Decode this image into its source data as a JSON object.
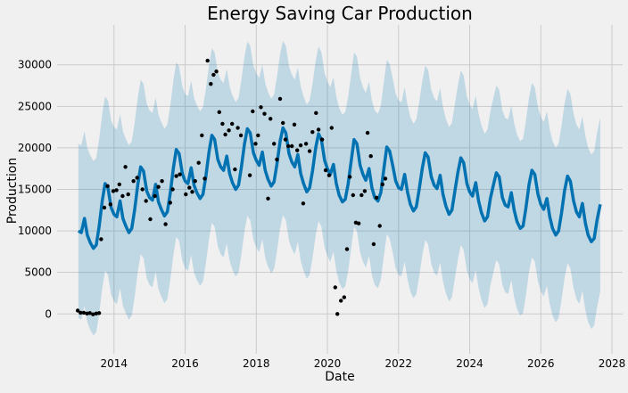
{
  "chart_data": {
    "type": "line",
    "title": "Energy Saving Car Production",
    "xlabel": "Date",
    "ylabel": "Production",
    "xlim": [
      2012.4,
      2028.3
    ],
    "ylim": [
      -4800,
      34800
    ],
    "grid": true,
    "x_ticks": [
      2014,
      2016,
      2018,
      2020,
      2022,
      2024,
      2026,
      2028
    ],
    "x_tick_labels": [
      "2014",
      "2016",
      "2018",
      "2020",
      "2022",
      "2024",
      "2026",
      "2028"
    ],
    "y_ticks": [
      0,
      5000,
      10000,
      15000,
      20000,
      25000,
      30000
    ],
    "y_tick_labels": [
      "0",
      "5000",
      "10000",
      "15000",
      "20000",
      "25000",
      "30000"
    ],
    "colors": {
      "forecast_line": "#0072b2",
      "uncertainty_band": "#0072b2",
      "observed_points": "#000000",
      "background": "#f0f0f0",
      "grid": "#cbcbcb"
    },
    "forecast": [
      [
        2013.0,
        10000
      ],
      [
        2013.08,
        9800
      ],
      [
        2013.17,
        11500
      ],
      [
        2013.25,
        9500
      ],
      [
        2013.33,
        8600
      ],
      [
        2013.42,
        7900
      ],
      [
        2013.5,
        8300
      ],
      [
        2013.58,
        10500
      ],
      [
        2013.67,
        13600
      ],
      [
        2013.75,
        15700
      ],
      [
        2013.83,
        15200
      ],
      [
        2013.92,
        12800
      ],
      [
        2014.0,
        12000
      ],
      [
        2014.08,
        11700
      ],
      [
        2014.17,
        13600
      ],
      [
        2014.25,
        11500
      ],
      [
        2014.33,
        10600
      ],
      [
        2014.42,
        9800
      ],
      [
        2014.5,
        10300
      ],
      [
        2014.58,
        12500
      ],
      [
        2014.67,
        15600
      ],
      [
        2014.75,
        17700
      ],
      [
        2014.83,
        17200
      ],
      [
        2014.92,
        14800
      ],
      [
        2015.0,
        14000
      ],
      [
        2015.08,
        13700
      ],
      [
        2015.17,
        15600
      ],
      [
        2015.25,
        13500
      ],
      [
        2015.33,
        12600
      ],
      [
        2015.42,
        11800
      ],
      [
        2015.5,
        12300
      ],
      [
        2015.58,
        14500
      ],
      [
        2015.67,
        17600
      ],
      [
        2015.75,
        19800
      ],
      [
        2015.83,
        19300
      ],
      [
        2015.92,
        16900
      ],
      [
        2016.0,
        16000
      ],
      [
        2016.08,
        15700
      ],
      [
        2016.17,
        17600
      ],
      [
        2016.25,
        15500
      ],
      [
        2016.33,
        14600
      ],
      [
        2016.42,
        13900
      ],
      [
        2016.5,
        14400
      ],
      [
        2016.58,
        16500
      ],
      [
        2016.67,
        19500
      ],
      [
        2016.75,
        21500
      ],
      [
        2016.83,
        21000
      ],
      [
        2016.92,
        18600
      ],
      [
        2017.0,
        17700
      ],
      [
        2017.08,
        17300
      ],
      [
        2017.17,
        19000
      ],
      [
        2017.25,
        16900
      ],
      [
        2017.33,
        15800
      ],
      [
        2017.42,
        15000
      ],
      [
        2017.5,
        15500
      ],
      [
        2017.58,
        17600
      ],
      [
        2017.67,
        20500
      ],
      [
        2017.75,
        22300
      ],
      [
        2017.83,
        21800
      ],
      [
        2017.92,
        19400
      ],
      [
        2018.0,
        18500
      ],
      [
        2018.08,
        17900
      ],
      [
        2018.17,
        19500
      ],
      [
        2018.25,
        17300
      ],
      [
        2018.33,
        16200
      ],
      [
        2018.42,
        15400
      ],
      [
        2018.5,
        15900
      ],
      [
        2018.58,
        18000
      ],
      [
        2018.67,
        20800
      ],
      [
        2018.75,
        22400
      ],
      [
        2018.83,
        21800
      ],
      [
        2018.92,
        19300
      ],
      [
        2019.0,
        18300
      ],
      [
        2019.08,
        17700
      ],
      [
        2019.17,
        19200
      ],
      [
        2019.25,
        16900
      ],
      [
        2019.33,
        15700
      ],
      [
        2019.42,
        14700
      ],
      [
        2019.5,
        15200
      ],
      [
        2019.58,
        17200
      ],
      [
        2019.67,
        20000
      ],
      [
        2019.75,
        21700
      ],
      [
        2019.83,
        21000
      ],
      [
        2019.92,
        18500
      ],
      [
        2020.0,
        17500
      ],
      [
        2020.08,
        16800
      ],
      [
        2020.17,
        18000
      ],
      [
        2020.25,
        15700
      ],
      [
        2020.33,
        14300
      ],
      [
        2020.42,
        13500
      ],
      [
        2020.5,
        13800
      ],
      [
        2020.58,
        15600
      ],
      [
        2020.67,
        18500
      ],
      [
        2020.75,
        21000
      ],
      [
        2020.83,
        20500
      ],
      [
        2020.92,
        17900
      ],
      [
        2021.0,
        16800
      ],
      [
        2021.08,
        16100
      ],
      [
        2021.17,
        17500
      ],
      [
        2021.25,
        15200
      ],
      [
        2021.33,
        14000
      ],
      [
        2021.42,
        13600
      ],
      [
        2021.5,
        14600
      ],
      [
        2021.58,
        17200
      ],
      [
        2021.67,
        20100
      ],
      [
        2021.75,
        19600
      ],
      [
        2021.83,
        18000
      ],
      [
        2021.92,
        16000
      ],
      [
        2022.0,
        15200
      ],
      [
        2022.08,
        15000
      ],
      [
        2022.17,
        16800
      ],
      [
        2022.25,
        14700
      ],
      [
        2022.33,
        13200
      ],
      [
        2022.42,
        12400
      ],
      [
        2022.5,
        12900
      ],
      [
        2022.58,
        15000
      ],
      [
        2022.67,
        17600
      ],
      [
        2022.75,
        19400
      ],
      [
        2022.83,
        18900
      ],
      [
        2022.92,
        16500
      ],
      [
        2023.0,
        15500
      ],
      [
        2023.08,
        15100
      ],
      [
        2023.17,
        16700
      ],
      [
        2023.25,
        14400
      ],
      [
        2023.33,
        13000
      ],
      [
        2023.42,
        12000
      ],
      [
        2023.5,
        12500
      ],
      [
        2023.58,
        14700
      ],
      [
        2023.67,
        17100
      ],
      [
        2023.75,
        18800
      ],
      [
        2023.83,
        18200
      ],
      [
        2023.92,
        15700
      ],
      [
        2024.0,
        14700
      ],
      [
        2024.08,
        14200
      ],
      [
        2024.17,
        15800
      ],
      [
        2024.25,
        13600
      ],
      [
        2024.33,
        12200
      ],
      [
        2024.42,
        11200
      ],
      [
        2024.5,
        11700
      ],
      [
        2024.58,
        13900
      ],
      [
        2024.67,
        15600
      ],
      [
        2024.75,
        17000
      ],
      [
        2024.83,
        16500
      ],
      [
        2024.92,
        14000
      ],
      [
        2025.0,
        13100
      ],
      [
        2025.08,
        12900
      ],
      [
        2025.17,
        14600
      ],
      [
        2025.25,
        12500
      ],
      [
        2025.33,
        11100
      ],
      [
        2025.42,
        10300
      ],
      [
        2025.5,
        10600
      ],
      [
        2025.58,
        12700
      ],
      [
        2025.67,
        15600
      ],
      [
        2025.75,
        17300
      ],
      [
        2025.83,
        16800
      ],
      [
        2025.92,
        14400
      ],
      [
        2026.0,
        13200
      ],
      [
        2026.08,
        12600
      ],
      [
        2026.17,
        13900
      ],
      [
        2026.25,
        11700
      ],
      [
        2026.33,
        10300
      ],
      [
        2026.42,
        9500
      ],
      [
        2026.5,
        10000
      ],
      [
        2026.58,
        12100
      ],
      [
        2026.67,
        14900
      ],
      [
        2026.75,
        16600
      ],
      [
        2026.83,
        16000
      ],
      [
        2026.92,
        13600
      ],
      [
        2027.0,
        12300
      ],
      [
        2027.08,
        11700
      ],
      [
        2027.17,
        13300
      ],
      [
        2027.25,
        11000
      ],
      [
        2027.33,
        9500
      ],
      [
        2027.42,
        8700
      ],
      [
        2027.5,
        9100
      ],
      [
        2027.58,
        11300
      ],
      [
        2027.67,
        13200
      ]
    ],
    "band_width": 10500,
    "observed": [
      [
        2012.98,
        400
      ],
      [
        2013.06,
        150
      ],
      [
        2013.15,
        150
      ],
      [
        2013.24,
        50
      ],
      [
        2013.32,
        100
      ],
      [
        2013.41,
        -50
      ],
      [
        2013.5,
        50
      ],
      [
        2013.58,
        100
      ],
      [
        2013.64,
        9000
      ],
      [
        2013.73,
        12800
      ],
      [
        2013.82,
        15400
      ],
      [
        2013.9,
        13200
      ],
      [
        2013.98,
        14800
      ],
      [
        2014.07,
        14900
      ],
      [
        2014.15,
        15600
      ],
      [
        2014.24,
        14200
      ],
      [
        2014.32,
        17700
      ],
      [
        2014.4,
        14400
      ],
      [
        2014.55,
        16000
      ],
      [
        2014.65,
        16400
      ],
      [
        2014.8,
        15000
      ],
      [
        2014.9,
        13600
      ],
      [
        2015.02,
        11400
      ],
      [
        2015.15,
        14200
      ],
      [
        2015.25,
        15300
      ],
      [
        2015.35,
        16000
      ],
      [
        2015.45,
        10800
      ],
      [
        2015.58,
        13400
      ],
      [
        2015.65,
        15000
      ],
      [
        2015.75,
        16600
      ],
      [
        2015.85,
        16800
      ],
      [
        2016.02,
        14400
      ],
      [
        2016.12,
        15200
      ],
      [
        2016.2,
        14700
      ],
      [
        2016.28,
        16000
      ],
      [
        2016.38,
        18200
      ],
      [
        2016.47,
        21500
      ],
      [
        2016.55,
        16300
      ],
      [
        2016.63,
        30500
      ],
      [
        2016.72,
        27700
      ],
      [
        2016.8,
        28800
      ],
      [
        2016.88,
        29200
      ],
      [
        2016.96,
        24300
      ],
      [
        2017.05,
        22900
      ],
      [
        2017.13,
        21600
      ],
      [
        2017.23,
        22100
      ],
      [
        2017.32,
        22900
      ],
      [
        2017.4,
        17400
      ],
      [
        2017.48,
        22400
      ],
      [
        2017.57,
        21500
      ],
      [
        2017.82,
        16700
      ],
      [
        2017.9,
        24400
      ],
      [
        2017.98,
        20500
      ],
      [
        2018.05,
        21500
      ],
      [
        2018.13,
        24900
      ],
      [
        2018.23,
        24100
      ],
      [
        2018.33,
        13900
      ],
      [
        2018.4,
        23500
      ],
      [
        2018.5,
        20500
      ],
      [
        2018.58,
        18600
      ],
      [
        2018.67,
        25900
      ],
      [
        2018.75,
        23000
      ],
      [
        2018.82,
        21000
      ],
      [
        2018.9,
        20200
      ],
      [
        2019.0,
        20200
      ],
      [
        2019.07,
        22800
      ],
      [
        2019.15,
        19700
      ],
      [
        2019.25,
        20300
      ],
      [
        2019.32,
        13300
      ],
      [
        2019.4,
        20500
      ],
      [
        2019.5,
        19600
      ],
      [
        2019.58,
        21900
      ],
      [
        2019.68,
        24200
      ],
      [
        2019.75,
        22200
      ],
      [
        2019.85,
        21000
      ],
      [
        2019.95,
        17300
      ],
      [
        2020.05,
        16700
      ],
      [
        2020.12,
        22400
      ],
      [
        2020.22,
        3200
      ],
      [
        2020.28,
        0
      ],
      [
        2020.38,
        1600
      ],
      [
        2020.47,
        2000
      ],
      [
        2020.55,
        7800
      ],
      [
        2020.63,
        16500
      ],
      [
        2020.72,
        14300
      ],
      [
        2020.8,
        11000
      ],
      [
        2020.88,
        10900
      ],
      [
        2020.96,
        14300
      ],
      [
        2021.05,
        14800
      ],
      [
        2021.13,
        21800
      ],
      [
        2021.22,
        19000
      ],
      [
        2021.3,
        8400
      ],
      [
        2021.38,
        14000
      ],
      [
        2021.47,
        10600
      ],
      [
        2021.55,
        15600
      ],
      [
        2021.63,
        16300
      ]
    ]
  }
}
